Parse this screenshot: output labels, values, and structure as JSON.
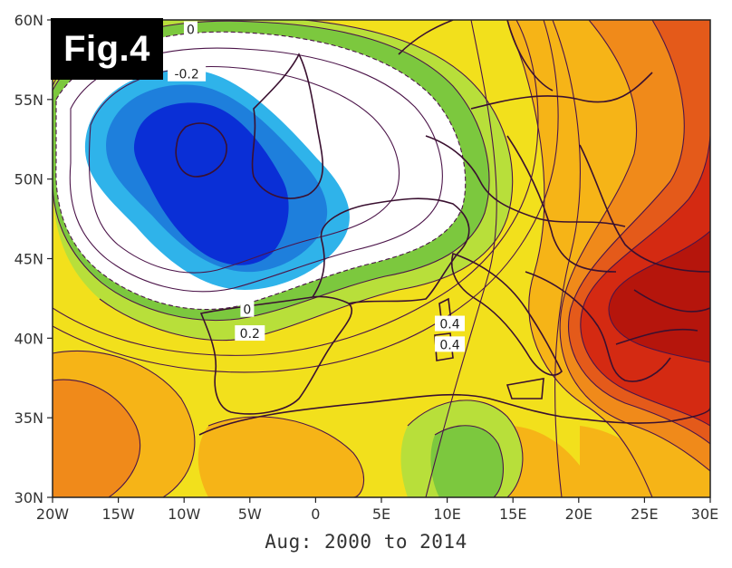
{
  "figure": {
    "label": "Fig.4",
    "caption": "Aug: 2000 to 2014"
  },
  "map": {
    "lon_ticks": [
      "20W",
      "15W",
      "10W",
      "5W",
      "0",
      "5E",
      "10E",
      "15E",
      "20E",
      "25E",
      "30E"
    ],
    "lat_ticks": [
      "60N",
      "55N",
      "50N",
      "45N",
      "40N",
      "35N",
      "30N"
    ],
    "extent": {
      "lon": [
        -20,
        30
      ],
      "lat": [
        30,
        60
      ]
    },
    "contour_labels": [
      {
        "text": "0",
        "lon": -9.5,
        "lat": 59.4
      },
      {
        "text": "-0.2",
        "lon": -9.8,
        "lat": 56.6
      },
      {
        "text": "0",
        "lon": -5.2,
        "lat": 41.8
      },
      {
        "text": "0.2",
        "lon": -5.0,
        "lat": 40.3
      },
      {
        "text": "0.4",
        "lon": 10.2,
        "lat": 40.9
      },
      {
        "text": "0.4",
        "lon": 10.2,
        "lat": 39.6
      }
    ],
    "colors": {
      "deep_blue": "#0a2fd6",
      "mid_blue": "#1e7fdc",
      "light_blue": "#2fb3ea",
      "white": "#ffffff",
      "green": "#7cc83e",
      "light_green": "#b8df3a",
      "yellow": "#f2e01c",
      "light_orange": "#f6b417",
      "orange": "#f08a1a",
      "red_orange": "#e45a1a",
      "red": "#d42a12",
      "dark_red": "#b5150c",
      "coast": "#3a1030"
    }
  }
}
